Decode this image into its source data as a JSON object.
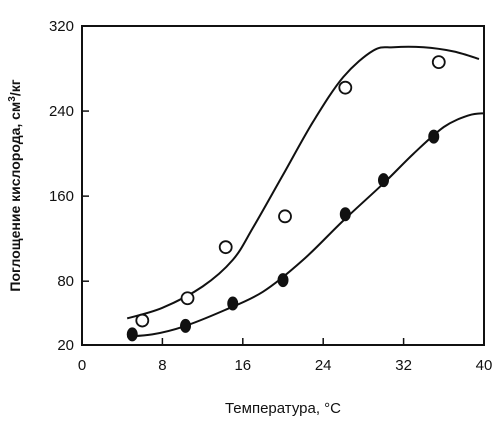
{
  "chart_data": {
    "type": "scatter",
    "xlabel": "Температура, °С",
    "ylabel_main": "Поглощение кислорода, см",
    "ylabel_sup": "3",
    "ylabel_tail": "/кг",
    "xlim": [
      0,
      40
    ],
    "ylim": [
      20,
      320
    ],
    "xticks": [
      "0",
      "8",
      "16",
      "24",
      "32",
      "40"
    ],
    "yticks": [
      "20",
      "80",
      "160",
      "240",
      "320"
    ],
    "xtick_values": [
      0,
      8,
      16,
      24,
      32,
      40
    ],
    "ytick_values": [
      20,
      80,
      160,
      240,
      320
    ],
    "grid": false,
    "series": [
      {
        "marker": "open-circle",
        "points": [
          [
            6,
            43
          ],
          [
            10.5,
            64
          ],
          [
            14.3,
            112
          ],
          [
            20.2,
            141
          ],
          [
            26.2,
            262
          ],
          [
            35.5,
            286
          ]
        ],
        "curve": [
          [
            4.5,
            45
          ],
          [
            8,
            55
          ],
          [
            12,
            75
          ],
          [
            15,
            100
          ],
          [
            17,
            130
          ],
          [
            20,
            180
          ],
          [
            23,
            230
          ],
          [
            26,
            272
          ],
          [
            29,
            297
          ],
          [
            31,
            300
          ],
          [
            34,
            300
          ],
          [
            37,
            296
          ],
          [
            39.5,
            289
          ]
        ]
      },
      {
        "marker": "filled-circle",
        "points": [
          [
            5,
            30
          ],
          [
            10.3,
            38
          ],
          [
            15,
            59
          ],
          [
            20,
            81
          ],
          [
            26.2,
            143
          ],
          [
            30,
            175
          ],
          [
            35,
            216
          ]
        ],
        "curve": [
          [
            4.5,
            28
          ],
          [
            7,
            30
          ],
          [
            10,
            37
          ],
          [
            14,
            52
          ],
          [
            18,
            70
          ],
          [
            22,
            100
          ],
          [
            26,
            137
          ],
          [
            30,
            172
          ],
          [
            33,
            200
          ],
          [
            36,
            225
          ],
          [
            38.5,
            236
          ],
          [
            40,
            238
          ]
        ]
      }
    ]
  }
}
